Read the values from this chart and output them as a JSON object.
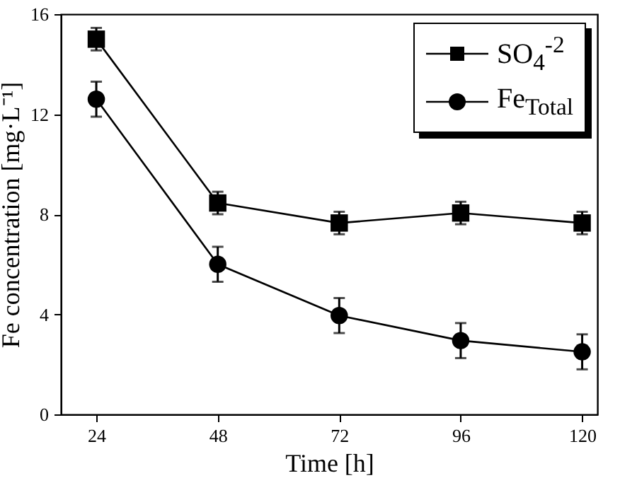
{
  "chart_data": {
    "type": "line",
    "xlabel": "Time [h]",
    "ylabel": "Fe concentration [mg·L⁻¹]",
    "x": [
      24,
      48,
      72,
      96,
      120
    ],
    "xlim": [
      17,
      123
    ],
    "xticks": [
      24,
      48,
      72,
      96,
      120
    ],
    "ylim": [
      0,
      16
    ],
    "yticks": [
      0,
      4,
      8,
      12,
      16
    ],
    "grid": false,
    "legend": "top right",
    "line_style": "solid",
    "series": [
      {
        "name": "SO$_{4}$$^{-2}$",
        "color": "#000000",
        "marker": "square",
        "values": [
          15.0,
          8.45,
          7.65,
          8.05,
          7.65
        ],
        "errors": [
          0.45,
          0.45,
          0.45,
          0.45,
          0.45
        ]
      },
      {
        "name": "Fe$_{Total}$",
        "color": "#000000",
        "marker": "circle",
        "values": [
          12.6,
          6.0,
          3.95,
          2.95,
          2.5
        ],
        "errors": [
          0.7,
          0.7,
          0.7,
          0.7,
          0.7
        ]
      }
    ]
  }
}
